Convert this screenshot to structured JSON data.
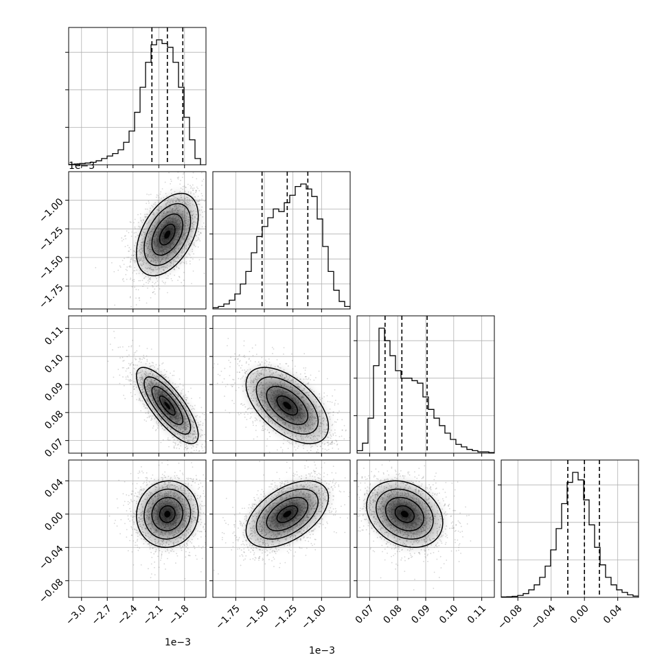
{
  "chart_data": {
    "type": "corner",
    "title": "",
    "grid": true,
    "params": [
      {
        "range": [
          -0.00315,
          -0.00155
        ],
        "ticks": [
          -0.003,
          -0.0027,
          -0.0024,
          -0.0021,
          -0.0018
        ],
        "tick_labels": [
          "−3.0",
          "−2.7",
          "−2.4",
          "−2.1",
          "−1.8"
        ],
        "offset_label": "1e−3",
        "mean": -0.002,
        "sd": 0.00018,
        "quantiles": [
          -0.00218,
          -0.002,
          -0.00182
        ],
        "hist": [
          0.003,
          0.006,
          0.01,
          0.014,
          0.02,
          0.032,
          0.05,
          0.07,
          0.09,
          0.12,
          0.18,
          0.27,
          0.42,
          0.62,
          0.82,
          0.96,
          1.0,
          0.97,
          0.94,
          0.82,
          0.62,
          0.38,
          0.2,
          0.05,
          0.0
        ],
        "hist_density_ticks": [
          0.3,
          0.6,
          0.9
        ]
      },
      {
        "range": [
          -0.00195,
          -0.00075
        ],
        "ticks": [
          -0.00175,
          -0.0015,
          -0.00125,
          -0.001
        ],
        "tick_labels": [
          "−1.75",
          "−1.50",
          "−1.25",
          "−1.00"
        ],
        "offset_label": "1e−3",
        "mean": -0.0013,
        "sd": 0.00018,
        "quantiles": [
          -0.00152,
          -0.0013,
          -0.00112
        ],
        "hist": [
          0.01,
          0.02,
          0.04,
          0.07,
          0.12,
          0.2,
          0.3,
          0.45,
          0.58,
          0.66,
          0.73,
          0.8,
          0.78,
          0.85,
          0.91,
          0.98,
          1.0,
          0.96,
          0.9,
          0.72,
          0.5,
          0.3,
          0.15,
          0.06,
          0.02
        ],
        "hist_density_ticks": [
          0.2,
          0.4,
          0.6,
          0.8
        ]
      },
      {
        "range": [
          0.0655,
          0.1145
        ],
        "ticks": [
          0.07,
          0.08,
          0.09,
          0.1,
          0.11
        ],
        "tick_labels": [
          "0.07",
          "0.08",
          "0.09",
          "0.10",
          "0.11"
        ],
        "offset_label": "",
        "mean": 0.0825,
        "sd": 0.0068,
        "quantiles": [
          0.0755,
          0.0815,
          0.0905
        ],
        "hist": [
          0.02,
          0.08,
          0.28,
          0.7,
          1.0,
          0.9,
          0.78,
          0.66,
          0.6,
          0.6,
          0.58,
          0.56,
          0.45,
          0.35,
          0.28,
          0.22,
          0.16,
          0.11,
          0.07,
          0.05,
          0.03,
          0.02,
          0.01,
          0.01,
          0.005
        ],
        "hist_density_ticks": [
          0.3,
          0.6,
          0.9
        ]
      },
      {
        "range": [
          -0.1,
          0.065
        ],
        "ticks": [
          -0.08,
          -0.04,
          0.0,
          0.04
        ],
        "tick_labels": [
          "−0.08",
          "−0.04",
          "0.00",
          "0.04"
        ],
        "offset_label": "",
        "mean": 0.0,
        "sd": 0.02,
        "quantiles": [
          -0.02,
          0.0,
          0.018
        ],
        "hist": [
          0.003,
          0.005,
          0.008,
          0.015,
          0.03,
          0.06,
          0.1,
          0.16,
          0.25,
          0.38,
          0.55,
          0.75,
          0.92,
          1.0,
          0.94,
          0.78,
          0.58,
          0.4,
          0.26,
          0.16,
          0.1,
          0.06,
          0.04,
          0.02,
          0.01
        ],
        "hist_density_ticks": [
          0.3,
          0.6,
          0.9
        ]
      }
    ],
    "row_labels_offsets": [
      "1e−3",
      "",
      ""
    ],
    "correlation_pairs": [
      {
        "row": 1,
        "col": 0,
        "rho": 0.45
      },
      {
        "row": 2,
        "col": 0,
        "rho": -0.78
      },
      {
        "row": 2,
        "col": 1,
        "rho": -0.55
      },
      {
        "row": 3,
        "col": 0,
        "rho": 0.05
      },
      {
        "row": 3,
        "col": 1,
        "rho": 0.5
      },
      {
        "row": 3,
        "col": 2,
        "rho": -0.25
      }
    ],
    "contour_levels": [
      0.5,
      1.0,
      1.5,
      2.0
    ],
    "colors": {
      "line": "#000000",
      "grid": "#b0b0b0",
      "scatter": "#888888",
      "density": "#000000"
    }
  }
}
